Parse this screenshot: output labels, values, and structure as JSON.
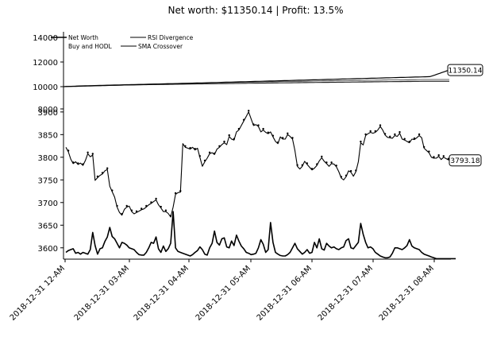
{
  "chart_data": [
    {
      "type": "line",
      "title": "Net worth: $11350.14 | Profit: 13.5%",
      "ylim": [
        0,
        14500
      ],
      "yticks": [
        0,
        2000,
        4000,
        6000,
        8000,
        10000,
        12000,
        14000
      ],
      "ytick_labels": [
        "",
        "",
        "",
        "",
        "8000",
        "10000",
        "12000",
        "14000"
      ],
      "grid": false,
      "legend_placement": "upper-left",
      "legend": [
        "Net Worth",
        "Buy and HODL",
        "RSI Divergence",
        "SMA Crossover"
      ],
      "series": [
        {
          "name": "Net Worth",
          "start": 10000,
          "end": 11350.14
        },
        {
          "name": "Buy and HODL",
          "start": 10000,
          "end": 10420
        },
        {
          "name": "RSI Divergence",
          "start": 10000,
          "end": 10580
        },
        {
          "name": "SMA Crossover",
          "start": 10000,
          "end": 10450
        }
      ],
      "annotations": [
        {
          "text": "11350.14",
          "y": 11350.14
        }
      ]
    },
    {
      "type": "line",
      "ylim": [
        3575,
        3905
      ],
      "yticks": [
        3600,
        3650,
        3700,
        3750,
        3800,
        3850,
        3900
      ],
      "ytick_labels": [
        "3600",
        "3650",
        "3700",
        "3750",
        "3800",
        "3850",
        "3900"
      ],
      "x_tick_labels": [
        "2018-12-31 12-AM",
        "2018-12-31 03-AM",
        "2018-12-31 04-AM",
        "2018-12-31 05-AM",
        "2018-12-31 06-AM",
        "2018-12-31 07-AM",
        "2018-12-31 08-AM"
      ],
      "price": [
        3822,
        3812,
        3796,
        3786,
        3790,
        3784,
        3787,
        3782,
        3793,
        3808,
        3801,
        3805,
        3749,
        3755,
        3760,
        3763,
        3770,
        3773,
        3736,
        3724,
        3712,
        3690,
        3678,
        3672,
        3685,
        3690,
        3692,
        3680,
        3675,
        3678,
        3681,
        3684,
        3686,
        3690,
        3695,
        3698,
        3702,
        3706,
        3695,
        3688,
        3680,
        3680,
        3676,
        3668,
        3690,
        3718,
        3722,
        3723,
        3830,
        3822,
        3820,
        3818,
        3822,
        3816,
        3820,
        3800,
        3780,
        3790,
        3798,
        3808,
        3810,
        3806,
        3818,
        3822,
        3828,
        3832,
        3828,
        3846,
        3840,
        3838,
        3856,
        3860,
        3870,
        3880,
        3890,
        3900,
        3885,
        3870,
        3872,
        3868,
        3856,
        3860,
        3855,
        3852,
        3856,
        3845,
        3835,
        3830,
        3845,
        3840,
        3840,
        3850,
        3846,
        3840,
        3815,
        3780,
        3774,
        3780,
        3791,
        3784,
        3778,
        3772,
        3776,
        3782,
        3792,
        3799,
        3791,
        3786,
        3780,
        3786,
        3785,
        3779,
        3768,
        3754,
        3750,
        3757,
        3770,
        3767,
        3758,
        3768,
        3790,
        3832,
        3827,
        3848,
        3852,
        3855,
        3853,
        3855,
        3860,
        3868,
        3860,
        3849,
        3844,
        3843,
        3842,
        3848,
        3846,
        3853,
        3840,
        3838,
        3835,
        3832,
        3840,
        3839,
        3843,
        3848,
        3843,
        3820,
        3815,
        3810,
        3800,
        3798,
        3798,
        3802,
        3795,
        3800,
        3797,
        3794,
        3796
      ],
      "volume": [
        3590,
        3594,
        3596,
        3598,
        3588,
        3590,
        3586,
        3590,
        3588,
        3586,
        3596,
        3634,
        3605,
        3586,
        3598,
        3600,
        3614,
        3624,
        3645,
        3625,
        3620,
        3610,
        3600,
        3612,
        3610,
        3606,
        3600,
        3598,
        3596,
        3590,
        3585,
        3584,
        3584,
        3590,
        3600,
        3612,
        3610,
        3624,
        3598,
        3590,
        3604,
        3592,
        3598,
        3610,
        3680,
        3600,
        3592,
        3590,
        3588,
        3586,
        3584,
        3582,
        3585,
        3590,
        3594,
        3602,
        3596,
        3586,
        3584,
        3600,
        3610,
        3637,
        3612,
        3606,
        3620,
        3622,
        3602,
        3600,
        3615,
        3605,
        3628,
        3615,
        3604,
        3598,
        3590,
        3588,
        3585,
        3586,
        3588,
        3600,
        3618,
        3608,
        3590,
        3596,
        3656,
        3612,
        3590,
        3586,
        3583,
        3582,
        3582,
        3585,
        3590,
        3600,
        3610,
        3598,
        3592,
        3586,
        3590,
        3596,
        3588,
        3590,
        3612,
        3600,
        3620,
        3598,
        3595,
        3610,
        3604,
        3600,
        3602,
        3598,
        3596,
        3600,
        3602,
        3616,
        3620,
        3600,
        3598,
        3605,
        3612,
        3654,
        3630,
        3612,
        3600,
        3602,
        3598,
        3590,
        3586,
        3582,
        3580,
        3578,
        3578,
        3580,
        3588,
        3600,
        3600,
        3598,
        3596,
        3600,
        3605,
        3618,
        3604,
        3600,
        3598,
        3596,
        3590,
        3586,
        3584,
        3582,
        3580,
        3578,
        3576,
        3576,
        3576,
        3576,
        3576,
        3576,
        3576,
        3576,
        3576
      ],
      "annotations": [
        {
          "text": "3793.18",
          "y": 3793.18
        }
      ]
    }
  ]
}
